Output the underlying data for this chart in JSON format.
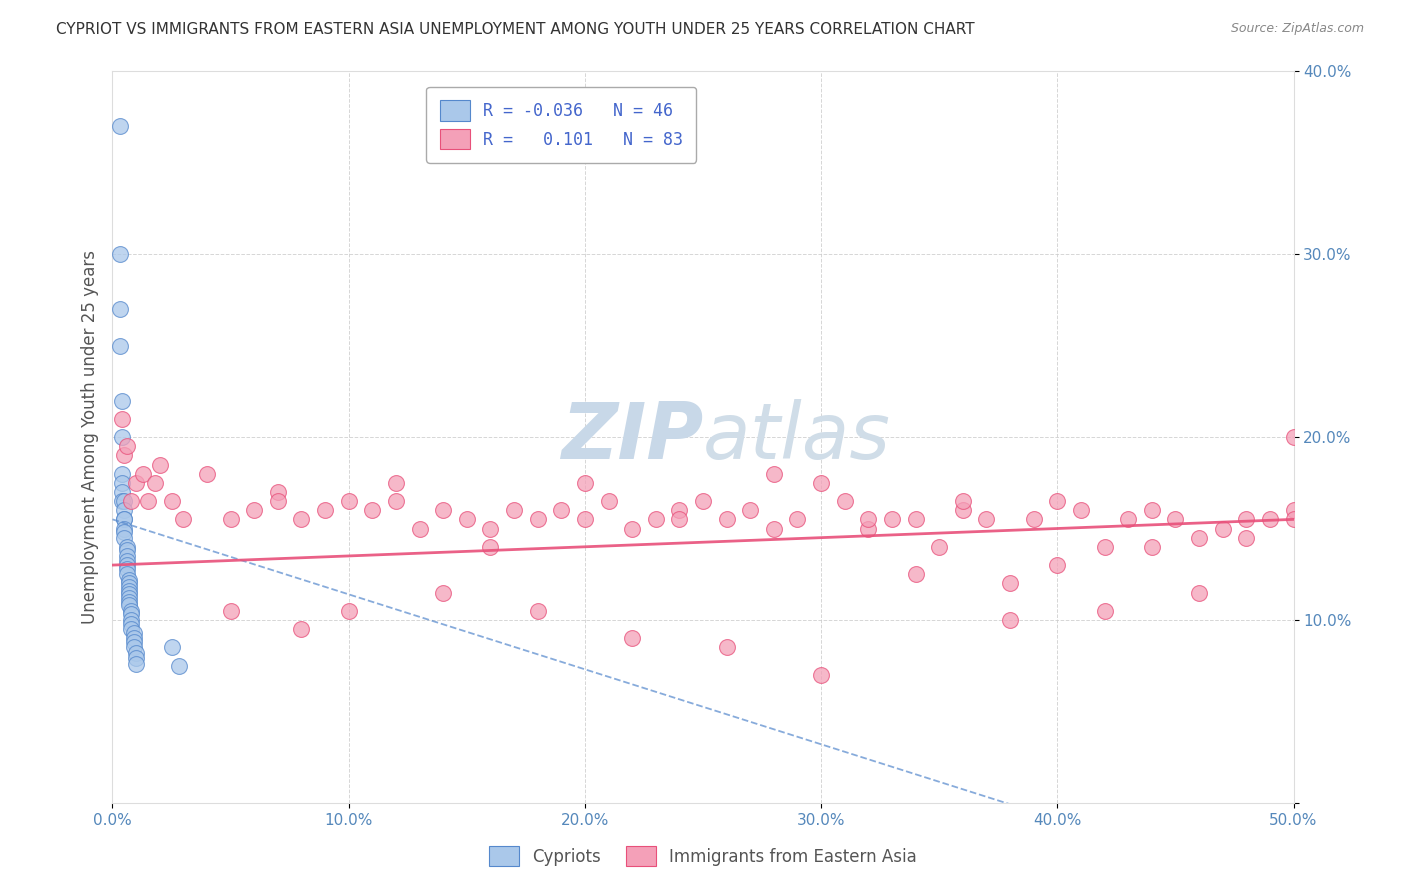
{
  "title": "CYPRIOT VS IMMIGRANTS FROM EASTERN ASIA UNEMPLOYMENT AMONG YOUTH UNDER 25 YEARS CORRELATION CHART",
  "source": "Source: ZipAtlas.com",
  "ylabel": "Unemployment Among Youth under 25 years",
  "xlim": [
    0.0,
    0.5
  ],
  "ylim": [
    0.0,
    0.4
  ],
  "xtick_vals": [
    0.0,
    0.1,
    0.2,
    0.3,
    0.4,
    0.5
  ],
  "ytick_vals": [
    0.0,
    0.1,
    0.2,
    0.3,
    0.4
  ],
  "legend_labels": [
    "Cypriots",
    "Immigrants from Eastern Asia"
  ],
  "R_cypriot": -0.036,
  "N_cypriot": 46,
  "R_eastern": 0.101,
  "N_eastern": 83,
  "cypriot_color": "#aac8ea",
  "eastern_color": "#f4a0b8",
  "cypriot_line_color": "#5588cc",
  "eastern_line_color": "#e8507a",
  "watermark_color": "#c8d8e8",
  "background_color": "#ffffff",
  "cypriot_x": [
    0.003,
    0.003,
    0.003,
    0.003,
    0.004,
    0.004,
    0.004,
    0.004,
    0.004,
    0.004,
    0.005,
    0.005,
    0.005,
    0.005,
    0.005,
    0.005,
    0.005,
    0.006,
    0.006,
    0.006,
    0.006,
    0.006,
    0.006,
    0.006,
    0.007,
    0.007,
    0.007,
    0.007,
    0.007,
    0.007,
    0.007,
    0.007,
    0.008,
    0.008,
    0.008,
    0.008,
    0.008,
    0.009,
    0.009,
    0.009,
    0.009,
    0.01,
    0.01,
    0.01,
    0.025,
    0.028
  ],
  "cypriot_y": [
    0.37,
    0.3,
    0.27,
    0.25,
    0.22,
    0.2,
    0.18,
    0.175,
    0.17,
    0.165,
    0.165,
    0.16,
    0.155,
    0.155,
    0.15,
    0.148,
    0.145,
    0.14,
    0.138,
    0.135,
    0.132,
    0.13,
    0.128,
    0.125,
    0.122,
    0.12,
    0.118,
    0.116,
    0.114,
    0.112,
    0.11,
    0.108,
    0.105,
    0.103,
    0.1,
    0.098,
    0.095,
    0.093,
    0.09,
    0.088,
    0.085,
    0.082,
    0.079,
    0.076,
    0.085,
    0.075
  ],
  "eastern_x": [
    0.004,
    0.005,
    0.006,
    0.008,
    0.01,
    0.013,
    0.015,
    0.018,
    0.02,
    0.025,
    0.03,
    0.04,
    0.05,
    0.06,
    0.07,
    0.08,
    0.09,
    0.1,
    0.11,
    0.12,
    0.13,
    0.14,
    0.15,
    0.16,
    0.17,
    0.18,
    0.19,
    0.2,
    0.21,
    0.22,
    0.23,
    0.24,
    0.25,
    0.26,
    0.27,
    0.28,
    0.29,
    0.3,
    0.31,
    0.32,
    0.33,
    0.34,
    0.35,
    0.36,
    0.37,
    0.38,
    0.39,
    0.4,
    0.41,
    0.42,
    0.43,
    0.44,
    0.45,
    0.46,
    0.47,
    0.48,
    0.49,
    0.05,
    0.08,
    0.1,
    0.14,
    0.18,
    0.22,
    0.26,
    0.3,
    0.34,
    0.38,
    0.42,
    0.46,
    0.5,
    0.07,
    0.12,
    0.16,
    0.2,
    0.24,
    0.28,
    0.32,
    0.36,
    0.4,
    0.44,
    0.48,
    0.5,
    0.5
  ],
  "eastern_y": [
    0.21,
    0.19,
    0.195,
    0.165,
    0.175,
    0.18,
    0.165,
    0.175,
    0.185,
    0.165,
    0.155,
    0.18,
    0.155,
    0.16,
    0.17,
    0.155,
    0.16,
    0.165,
    0.16,
    0.165,
    0.15,
    0.16,
    0.155,
    0.15,
    0.16,
    0.155,
    0.16,
    0.155,
    0.165,
    0.15,
    0.155,
    0.16,
    0.165,
    0.155,
    0.16,
    0.18,
    0.155,
    0.175,
    0.165,
    0.15,
    0.155,
    0.155,
    0.14,
    0.16,
    0.155,
    0.12,
    0.155,
    0.13,
    0.16,
    0.14,
    0.155,
    0.14,
    0.155,
    0.145,
    0.15,
    0.145,
    0.155,
    0.105,
    0.095,
    0.105,
    0.115,
    0.105,
    0.09,
    0.085,
    0.07,
    0.125,
    0.1,
    0.105,
    0.115,
    0.2,
    0.165,
    0.175,
    0.14,
    0.175,
    0.155,
    0.15,
    0.155,
    0.165,
    0.165,
    0.16,
    0.155,
    0.16,
    0.155
  ]
}
